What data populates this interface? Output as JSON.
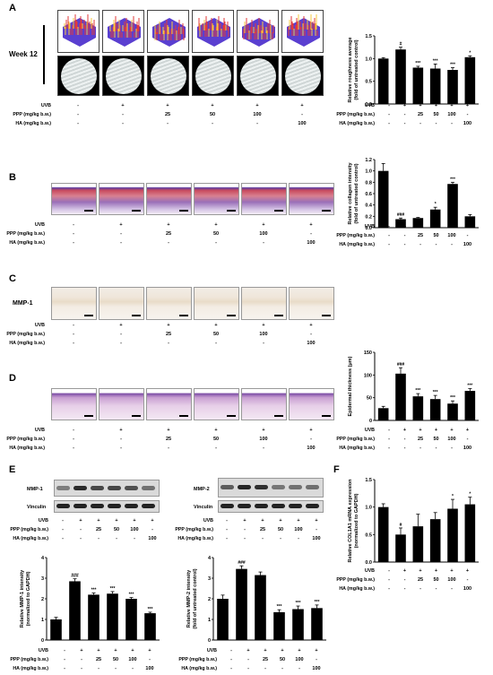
{
  "panels": {
    "A": "A",
    "B": "B",
    "C": "C",
    "D": "D",
    "E": "E",
    "F": "F"
  },
  "week_label": "Week 12",
  "mmp1_label": "MMP-1",
  "row_labels": {
    "uvb": "UVB",
    "ppp": "PPP (mg/kg b.w.)",
    "ha": "HA (mg/kg b.w.)"
  },
  "conditions": {
    "uvb": [
      "-",
      "+",
      "+",
      "+",
      "+",
      "+"
    ],
    "ppp": [
      "-",
      "-",
      "25",
      "50",
      "100",
      "-"
    ],
    "ha": [
      "-",
      "-",
      "-",
      "-",
      "-",
      "100"
    ]
  },
  "blot": {
    "mmp1": "MMP-1",
    "mmp2": "MMP-2",
    "vinculin": "Vinculin"
  },
  "colors": {
    "bar": "#000000",
    "surface_high": "#e23a3a",
    "surface_low": "#5a3fd0"
  },
  "chart_data": [
    {
      "id": "A",
      "type": "bar",
      "ylabel": "Relative roughness average\n(fold of untreated control)",
      "ylim": [
        0,
        1.5
      ],
      "yticks": [
        "0.0",
        "0.5",
        "1.0",
        "1.5"
      ],
      "values": [
        1.0,
        1.2,
        0.8,
        0.78,
        0.75,
        1.03
      ],
      "errors": [
        0.02,
        0.05,
        0.03,
        0.1,
        0.05,
        0.03
      ],
      "marks": [
        "",
        "#",
        "***",
        "***",
        "***",
        "*"
      ]
    },
    {
      "id": "B",
      "type": "bar",
      "ylabel": "Relative collagen intensity\n(fold of untreated control)",
      "ylim": [
        0,
        1.2
      ],
      "yticks": [
        "0.0",
        "0.2",
        "0.4",
        "0.6",
        "0.8",
        "1.0",
        "1.2"
      ],
      "values": [
        1.0,
        0.15,
        0.17,
        0.32,
        0.77,
        0.2
      ],
      "errors": [
        0.13,
        0.02,
        0.01,
        0.04,
        0.03,
        0.03
      ],
      "marks": [
        "",
        "###",
        "",
        "*",
        "***",
        ""
      ]
    },
    {
      "id": "D",
      "type": "bar",
      "ylabel": "Epidermal thickness (μm)",
      "ylim": [
        0,
        150
      ],
      "yticks": [
        "0",
        "50",
        "100",
        "150"
      ],
      "values": [
        27,
        103,
        53,
        47,
        37,
        65
      ],
      "errors": [
        4,
        13,
        6,
        8,
        6,
        5
      ],
      "marks": [
        "",
        "###",
        "***",
        "***",
        "***",
        "***"
      ]
    },
    {
      "id": "E1",
      "type": "bar",
      "ylabel": "Relative MMP-1 intensity\n(normalized to GAPDH)",
      "ylim": [
        0,
        4
      ],
      "yticks": [
        "0",
        "1",
        "2",
        "3",
        "4"
      ],
      "values": [
        1.0,
        2.85,
        2.2,
        2.25,
        2.0,
        1.3
      ],
      "errors": [
        0.1,
        0.12,
        0.08,
        0.1,
        0.06,
        0.05
      ],
      "marks": [
        "",
        "###",
        "***",
        "***",
        "***",
        "***"
      ]
    },
    {
      "id": "E2",
      "type": "bar",
      "ylabel": "Relative MMP-2 intensity\n(fold of untreated control)",
      "ylim": [
        0,
        4
      ],
      "yticks": [
        "0",
        "1",
        "2",
        "3",
        "4"
      ],
      "values": [
        2.0,
        3.45,
        3.15,
        1.35,
        1.5,
        1.55
      ],
      "errors": [
        0.18,
        0.15,
        0.15,
        0.12,
        0.15,
        0.15
      ],
      "marks": [
        "",
        "###",
        "",
        "***",
        "***",
        "***"
      ]
    },
    {
      "id": "F",
      "type": "bar",
      "ylabel": "Relative COL1A1 mRNA expression\n(normalized to GAPDH)",
      "ylim": [
        0,
        1.5
      ],
      "yticks": [
        "0.0",
        "0.5",
        "1.0",
        "1.5"
      ],
      "values": [
        1.0,
        0.5,
        0.65,
        0.78,
        0.97,
        1.05
      ],
      "errors": [
        0.06,
        0.12,
        0.22,
        0.12,
        0.17,
        0.13
      ],
      "marks": [
        "",
        "#",
        "",
        "",
        "*",
        "*"
      ]
    }
  ]
}
